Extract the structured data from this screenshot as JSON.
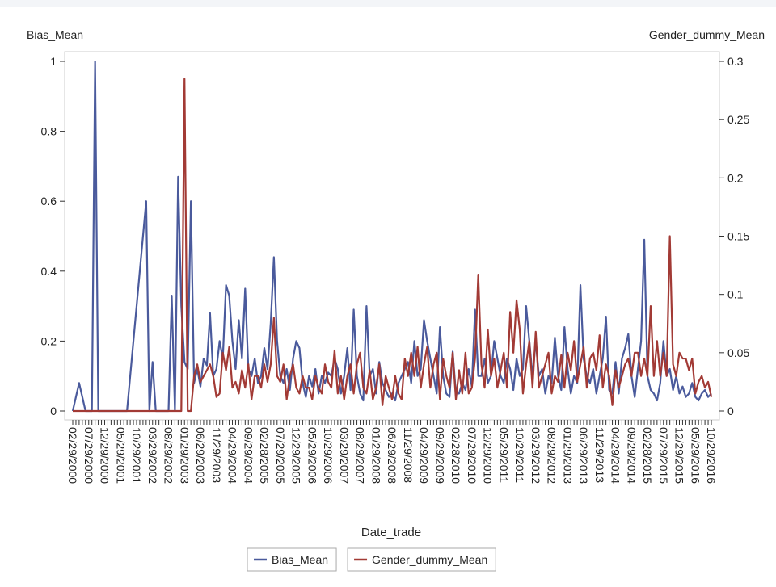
{
  "chart_data": {
    "type": "line",
    "y_label": "Bias_Mean",
    "y2_label": "Gender_dummy_Mean",
    "x_label": "Date_trade",
    "categories": [
      "02/29/2000",
      null,
      null,
      null,
      null,
      "07/29/2000",
      null,
      null,
      null,
      null,
      "12/29/2000",
      null,
      null,
      null,
      null,
      "05/29/2001",
      null,
      null,
      null,
      null,
      "10/29/2001",
      null,
      null,
      null,
      null,
      "03/29/2002",
      null,
      null,
      null,
      null,
      "08/29/2002",
      null,
      null,
      null,
      null,
      "01/29/2003",
      null,
      null,
      null,
      null,
      "06/29/2003",
      null,
      null,
      null,
      null,
      "11/29/2003",
      null,
      null,
      null,
      null,
      "04/29/2004",
      null,
      null,
      null,
      null,
      "09/29/2004",
      null,
      null,
      null,
      null,
      "02/28/2005",
      null,
      null,
      null,
      null,
      "07/29/2005",
      null,
      null,
      null,
      null,
      "12/29/2005",
      null,
      null,
      null,
      null,
      "05/29/2006",
      null,
      null,
      null,
      null,
      "10/29/2006",
      null,
      null,
      null,
      null,
      "03/29/2007",
      null,
      null,
      null,
      null,
      "08/29/2007",
      null,
      null,
      null,
      null,
      "01/29/2008",
      null,
      null,
      null,
      null,
      "06/29/2008",
      null,
      null,
      null,
      null,
      "11/29/2008",
      null,
      null,
      null,
      null,
      "04/29/2009",
      null,
      null,
      null,
      null,
      "09/29/2009",
      null,
      null,
      null,
      null,
      "02/28/2010",
      null,
      null,
      null,
      null,
      "07/29/2010",
      null,
      null,
      null,
      null,
      "12/29/2010",
      null,
      null,
      null,
      null,
      "05/29/2011",
      null,
      null,
      null,
      null,
      "10/29/2011",
      null,
      null,
      null,
      null,
      "03/29/2012",
      null,
      null,
      null,
      null,
      "08/29/2012",
      null,
      null,
      null,
      null,
      "01/29/2013",
      null,
      null,
      null,
      null,
      "06/29/2013",
      null,
      null,
      null,
      null,
      "11/29/2013",
      null,
      null,
      null,
      null,
      "04/29/2014",
      null,
      null,
      null,
      null,
      "09/29/2014",
      null,
      null,
      null,
      null,
      "02/28/2015",
      null,
      null,
      null,
      null,
      "07/29/2015",
      null,
      null,
      null,
      null,
      "12/29/2015",
      null,
      null,
      null,
      null,
      "05/29/2016",
      null,
      null,
      null,
      null,
      "10/29/2016"
    ],
    "series": [
      {
        "name": "Bias_Mean",
        "color": "#4a5a9c",
        "axis": "y",
        "values": [
          0,
          0.04,
          0.08,
          0.04,
          0,
          0,
          0,
          1.0,
          0,
          0,
          0,
          0,
          0,
          0,
          0,
          0,
          0,
          0,
          0.1,
          0.2,
          0.3,
          0.4,
          0.5,
          0.6,
          0,
          0.14,
          0,
          0,
          0,
          0,
          0,
          0.33,
          0,
          0.67,
          0.3,
          0.14,
          0.12,
          0.6,
          0.08,
          0.12,
          0.07,
          0.15,
          0.13,
          0.28,
          0.1,
          0.12,
          0.2,
          0.15,
          0.36,
          0.33,
          0.2,
          0.12,
          0.26,
          0.15,
          0.35,
          0.12,
          0.1,
          0.15,
          0.08,
          0.1,
          0.18,
          0.12,
          0.25,
          0.44,
          0.2,
          0.1,
          0.08,
          0.12,
          0.06,
          0.15,
          0.2,
          0.18,
          0.08,
          0.04,
          0.1,
          0.07,
          0.12,
          0.05,
          0.1,
          0.08,
          0.11,
          0.1,
          0.15,
          0.12,
          0.05,
          0.1,
          0.18,
          0.06,
          0.29,
          0.1,
          0.05,
          0.03,
          0.3,
          0.1,
          0.12,
          0.05,
          0.14,
          0.08,
          0.06,
          0.04,
          0.05,
          0.03,
          0.08,
          0.1,
          0.12,
          0.14,
          0.08,
          0.2,
          0.1,
          0.12,
          0.26,
          0.2,
          0.15,
          0.1,
          0.05,
          0.24,
          0.1,
          0.05,
          0.04,
          0.17,
          0.05,
          0.05,
          0.08,
          0.06,
          0.12,
          0.07,
          0.29,
          0.1,
          0.1,
          0.15,
          0.08,
          0.1,
          0.2,
          0.15,
          0.1,
          0.08,
          0.15,
          0.12,
          0.06,
          0.15,
          0.1,
          0.12,
          0.3,
          0.2,
          0.1,
          0.2,
          0.1,
          0.12,
          0.05,
          0.1,
          0.08,
          0.21,
          0.1,
          0.06,
          0.24,
          0.12,
          0.05,
          0.1,
          0.08,
          0.36,
          0.15,
          0.1,
          0.08,
          0.12,
          0.05,
          0.1,
          0.15,
          0.27,
          0.06,
          0.05,
          0.14,
          0.05,
          0.15,
          0.18,
          0.22,
          0.1,
          0.04,
          0.12,
          0.2,
          0.49,
          0.1,
          0.06,
          0.05,
          0.03,
          0.08,
          0.2,
          0.1,
          0.12,
          0.06,
          0.1,
          0.05,
          0.07,
          0.04,
          0.05,
          0.08,
          0.04,
          0.03,
          0.05,
          0.06,
          0.04,
          0.05
        ]
      },
      {
        "name": "Gender_dummy_Mean",
        "color": "#a23a35",
        "axis": "y2",
        "values": [
          0,
          0,
          0,
          0,
          0,
          0,
          0,
          0,
          0,
          0,
          0,
          0,
          0,
          0,
          0,
          0,
          0,
          0,
          0,
          0,
          0,
          0,
          0,
          0,
          0,
          0,
          0,
          0,
          0,
          0,
          0,
          0,
          0,
          0,
          0,
          0.285,
          0,
          0,
          0.03,
          0.04,
          0.025,
          0.03,
          0.035,
          0.04,
          0.03,
          0.012,
          0.015,
          0.05,
          0.035,
          0.055,
          0.02,
          0.025,
          0.015,
          0.035,
          0.02,
          0.04,
          0.01,
          0.03,
          0.03,
          0.02,
          0.04,
          0.025,
          0.04,
          0.08,
          0.03,
          0.025,
          0.04,
          0.01,
          0.03,
          0.04,
          0.02,
          0.015,
          0.03,
          0.02,
          0.02,
          0.01,
          0.03,
          0.02,
          0.015,
          0.04,
          0.025,
          0.02,
          0.052,
          0.015,
          0.03,
          0.01,
          0.03,
          0.04,
          0.015,
          0.04,
          0.05,
          0.02,
          0.015,
          0.035,
          0.01,
          0.02,
          0.04,
          0.005,
          0.03,
          0.02,
          0.01,
          0.03,
          0.015,
          0.01,
          0.045,
          0.03,
          0.05,
          0.03,
          0.055,
          0.02,
          0.04,
          0.055,
          0.02,
          0.04,
          0.05,
          0.01,
          0.045,
          0.03,
          0.02,
          0.05,
          0.01,
          0.035,
          0.015,
          0.05,
          0.015,
          0.02,
          0.045,
          0.117,
          0.04,
          0.02,
          0.07,
          0.03,
          0.045,
          0.02,
          0.035,
          0.05,
          0.02,
          0.085,
          0.05,
          0.095,
          0.07,
          0.015,
          0.04,
          0.06,
          0.02,
          0.068,
          0.02,
          0.03,
          0.04,
          0.05,
          0.015,
          0.03,
          0.025,
          0.048,
          0.02,
          0.05,
          0.035,
          0.06,
          0.025,
          0.04,
          0.055,
          0.02,
          0.045,
          0.05,
          0.035,
          0.065,
          0.02,
          0.04,
          0.03,
          0.005,
          0.035,
          0.02,
          0.03,
          0.04,
          0.045,
          0.03,
          0.05,
          0.05,
          0.03,
          0.045,
          0.03,
          0.09,
          0.03,
          0.06,
          0.03,
          0.05,
          0.03,
          0.15,
          0.04,
          0.03,
          0.05,
          0.045,
          0.045,
          0.035,
          0.045,
          0.015,
          0.025,
          0.03,
          0.02,
          0.025,
          0.012
        ]
      }
    ],
    "ylim": [
      0,
      1
    ],
    "yticks": [
      0,
      0.2,
      0.4,
      0.6,
      0.8,
      1
    ],
    "y2lim": [
      0,
      0.3
    ],
    "y2ticks": [
      0,
      0.05,
      0.1,
      0.15,
      0.2,
      0.25,
      0.3
    ],
    "legend": "bottom"
  }
}
